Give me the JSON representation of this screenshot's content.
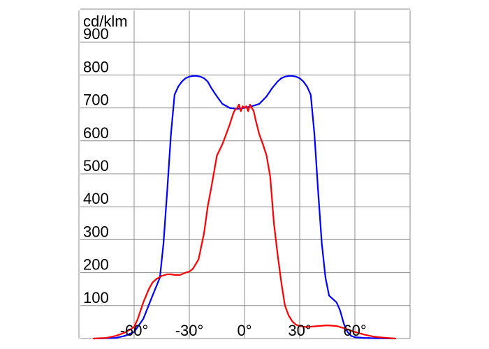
{
  "chart_data": {
    "type": "line",
    "ylabel": "cd/klm",
    "xlim": [
      -90,
      90
    ],
    "ylim": [
      0,
      1000
    ],
    "grid": true,
    "x_ticks": [
      {
        "value": -60,
        "label": "-60°"
      },
      {
        "value": -30,
        "label": "-30°"
      },
      {
        "value": 0,
        "label": "0°"
      },
      {
        "value": 30,
        "label": "30°"
      },
      {
        "value": 60,
        "label": "60°"
      }
    ],
    "y_ticks": [
      {
        "value": 100,
        "label": "100"
      },
      {
        "value": 200,
        "label": "200"
      },
      {
        "value": 300,
        "label": "300"
      },
      {
        "value": 400,
        "label": "400"
      },
      {
        "value": 500,
        "label": "500"
      },
      {
        "value": 600,
        "label": "600"
      },
      {
        "value": 700,
        "label": "700"
      },
      {
        "value": 800,
        "label": "800"
      },
      {
        "value": 900,
        "label": "900"
      }
    ],
    "series": [
      {
        "color": "#0000ff",
        "x": [
          -82,
          -70,
          -65,
          -60,
          -55,
          -50,
          -46,
          -44,
          -42,
          -40,
          -38,
          -36,
          -34,
          -32,
          -30,
          -28,
          -26,
          -24,
          -22,
          -20,
          -18,
          -15,
          -12,
          -8,
          -4,
          0,
          4,
          8,
          12,
          15,
          18,
          20,
          22,
          24,
          26,
          28,
          30,
          32,
          34,
          36,
          38,
          40,
          42,
          44,
          46,
          50,
          52,
          54,
          56,
          58,
          60,
          65,
          70,
          82
        ],
        "y": [
          0,
          2,
          8,
          20,
          60,
          130,
          185,
          290,
          450,
          620,
          740,
          765,
          780,
          790,
          795,
          797,
          797,
          795,
          790,
          780,
          760,
          735,
          712,
          700,
          697,
          700,
          705,
          712,
          735,
          760,
          780,
          790,
          795,
          797,
          797,
          795,
          790,
          780,
          765,
          740,
          620,
          450,
          290,
          185,
          130,
          110,
          85,
          45,
          20,
          8,
          4,
          2,
          1,
          0
        ]
      },
      {
        "color": "#ff0000",
        "x": [
          -82,
          -75,
          -70,
          -65,
          -62,
          -60,
          -58,
          -55,
          -52,
          -50,
          -48,
          -45,
          -42,
          -40,
          -38,
          -35,
          -32,
          -30,
          -28,
          -25,
          -22,
          -20,
          -18,
          -15,
          -12,
          -10,
          -8,
          -6,
          -5,
          -4,
          -3,
          -2,
          -1,
          0,
          1,
          2,
          3,
          4,
          5,
          6,
          8,
          10,
          12,
          14,
          15,
          16,
          18,
          20,
          22,
          24,
          26,
          28,
          30,
          32,
          34,
          36,
          40,
          45,
          50,
          55,
          60,
          65,
          70,
          75,
          82
        ],
        "y": [
          0,
          2,
          8,
          18,
          28,
          35,
          60,
          110,
          150,
          170,
          180,
          190,
          195,
          195,
          193,
          193,
          200,
          203,
          212,
          240,
          320,
          400,
          460,
          555,
          590,
          620,
          650,
          685,
          695,
          700,
          710,
          690,
          705,
          700,
          705,
          690,
          710,
          700,
          690,
          665,
          620,
          590,
          555,
          490,
          420,
          350,
          255,
          170,
          100,
          70,
          52,
          42,
          38,
          36,
          35,
          36,
          38,
          40,
          38,
          30,
          20,
          12,
          6,
          3,
          0
        ]
      }
    ]
  }
}
